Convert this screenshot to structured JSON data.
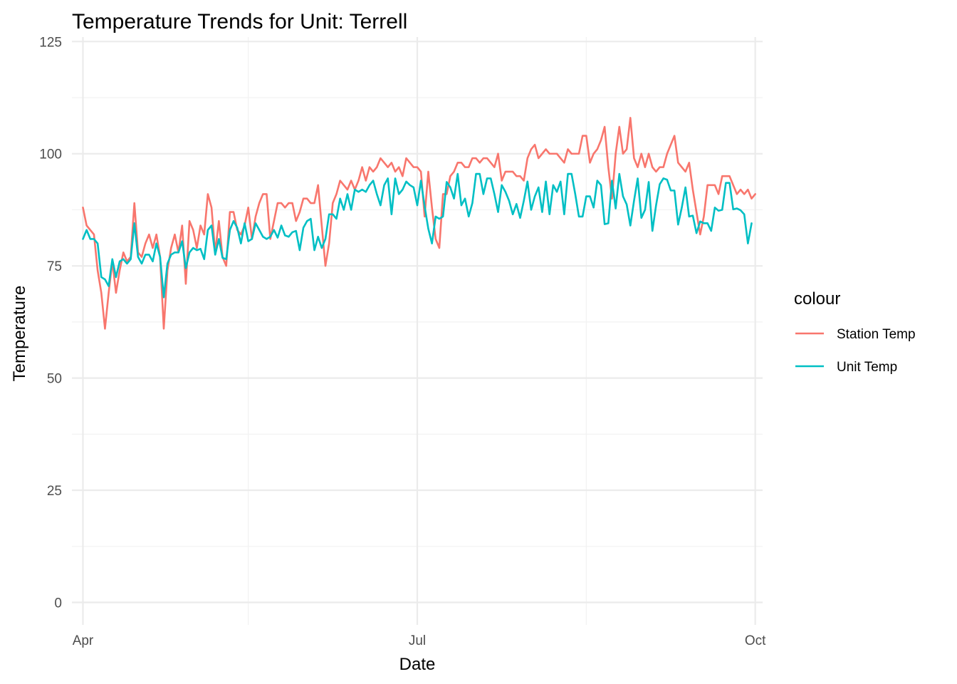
{
  "chart_data": {
    "type": "line",
    "title": "Temperature Trends for Unit: Terrell",
    "xlabel": "Date",
    "ylabel": "Temperature",
    "x_range": [
      "2023-03-29",
      "2023-10-03"
    ],
    "ylim": [
      -5,
      126
    ],
    "y_ticks": [
      0,
      25,
      50,
      75,
      100,
      125
    ],
    "y_minor_ticks": [
      12.5,
      37.5,
      62.5,
      87.5,
      112.5
    ],
    "x_ticks": [
      {
        "date": "2023-04-01",
        "label": "Apr"
      },
      {
        "date": "2023-07-01",
        "label": "Jul"
      },
      {
        "date": "2023-10-01",
        "label": "Oct"
      }
    ],
    "x_minor_ticks": [
      "2023-05-16",
      "2023-08-16"
    ],
    "grid": true,
    "legend": {
      "title": "colour",
      "position": "right"
    },
    "start_date": "2023-04-01",
    "series": [
      {
        "name": "Station Temp",
        "color": "#F8766D",
        "values": [
          88,
          84,
          83,
          82,
          74,
          69,
          61,
          69,
          76,
          69,
          74,
          78,
          76,
          77,
          89,
          78,
          77,
          80,
          82,
          79,
          82,
          77,
          61,
          74,
          79,
          82,
          78,
          84,
          71,
          85,
          83,
          79,
          84,
          82,
          91,
          88,
          78,
          85,
          77,
          75,
          87,
          87,
          83,
          82,
          84,
          88,
          81,
          86,
          89,
          91,
          91,
          81,
          85,
          89,
          89,
          88,
          89,
          89,
          85,
          87,
          90,
          90,
          89,
          89,
          93,
          84,
          75,
          80,
          89,
          91,
          94,
          93,
          92,
          94,
          92,
          94,
          97,
          94,
          97,
          96,
          97,
          99,
          98,
          97,
          98,
          96,
          97,
          95,
          99,
          98,
          97,
          97,
          96,
          86,
          96,
          88,
          81,
          79,
          91,
          91,
          95,
          96,
          98,
          98,
          97,
          97,
          99,
          99,
          98,
          99,
          99,
          98,
          97,
          100,
          94,
          96,
          96,
          96,
          95,
          95,
          94,
          99,
          101,
          102,
          99,
          100,
          101,
          100,
          100,
          100,
          99,
          98,
          101,
          100,
          100,
          100,
          104,
          104,
          98,
          100,
          101,
          103,
          106,
          97,
          90,
          100,
          106,
          100,
          101,
          108,
          99,
          97,
          100,
          97,
          100,
          97,
          96,
          97,
          97,
          100,
          102,
          104,
          98,
          97,
          96,
          98,
          92,
          87,
          82,
          86,
          93,
          93,
          93,
          91,
          95,
          95,
          95,
          93,
          91,
          92,
          91,
          92,
          90,
          91
        ]
      },
      {
        "name": "Unit Temp",
        "color": "#00BFC4",
        "values": [
          81,
          83,
          81,
          81,
          80,
          72.5,
          72,
          70.5,
          76.5,
          72.5,
          76,
          76.5,
          75.5,
          76.5,
          84.5,
          77,
          75.5,
          77.5,
          77.5,
          76,
          80,
          77,
          68,
          75.5,
          77.5,
          78,
          78,
          80.5,
          74.5,
          78,
          79,
          78.5,
          78.8,
          76.5,
          83,
          84,
          77.5,
          81,
          76.8,
          76.5,
          83,
          85,
          83.5,
          80,
          84.5,
          80.5,
          81,
          84.5,
          83,
          81.5,
          81,
          81.5,
          83,
          81.3,
          84,
          81.8,
          81.5,
          82.5,
          82.8,
          78.5,
          83.5,
          85,
          85.5,
          78.5,
          81.5,
          79,
          81,
          86.5,
          86.5,
          85.5,
          90,
          87.5,
          91,
          87.5,
          92,
          91.5,
          92,
          91.5,
          93,
          94,
          91,
          88.5,
          93,
          94.5,
          86.5,
          94.5,
          91,
          92,
          93.8,
          93,
          92.5,
          88.5,
          94,
          88.3,
          83.3,
          80,
          86,
          85.5,
          86,
          93.7,
          92.5,
          90,
          95.5,
          88.5,
          90,
          86,
          89,
          95.5,
          95.5,
          91,
          94.5,
          94.5,
          91,
          87,
          93,
          91.5,
          89.5,
          86.5,
          88.8,
          85.7,
          89.5,
          93.8,
          87.5,
          90.5,
          92.5,
          87,
          93.8,
          86.5,
          93,
          91.5,
          93.8,
          86.5,
          95.5,
          95.5,
          91,
          86,
          86,
          90.5,
          90.5,
          88,
          94,
          93,
          84.3,
          84.5,
          94,
          87.8,
          95.5,
          90.5,
          88.7,
          84,
          89.5,
          94.5,
          85.7,
          87.5,
          93.7,
          82.8,
          88.5,
          93.2,
          94.5,
          94.2,
          91.8,
          91.8,
          84.2,
          88,
          92.5,
          86,
          86.2,
          82.3,
          84.9,
          84.5,
          84.5,
          82.8,
          88,
          87.3,
          87.5,
          93.5,
          93.5,
          87.6,
          87.8,
          87.4,
          86.5,
          80,
          84.5
        ]
      }
    ]
  }
}
